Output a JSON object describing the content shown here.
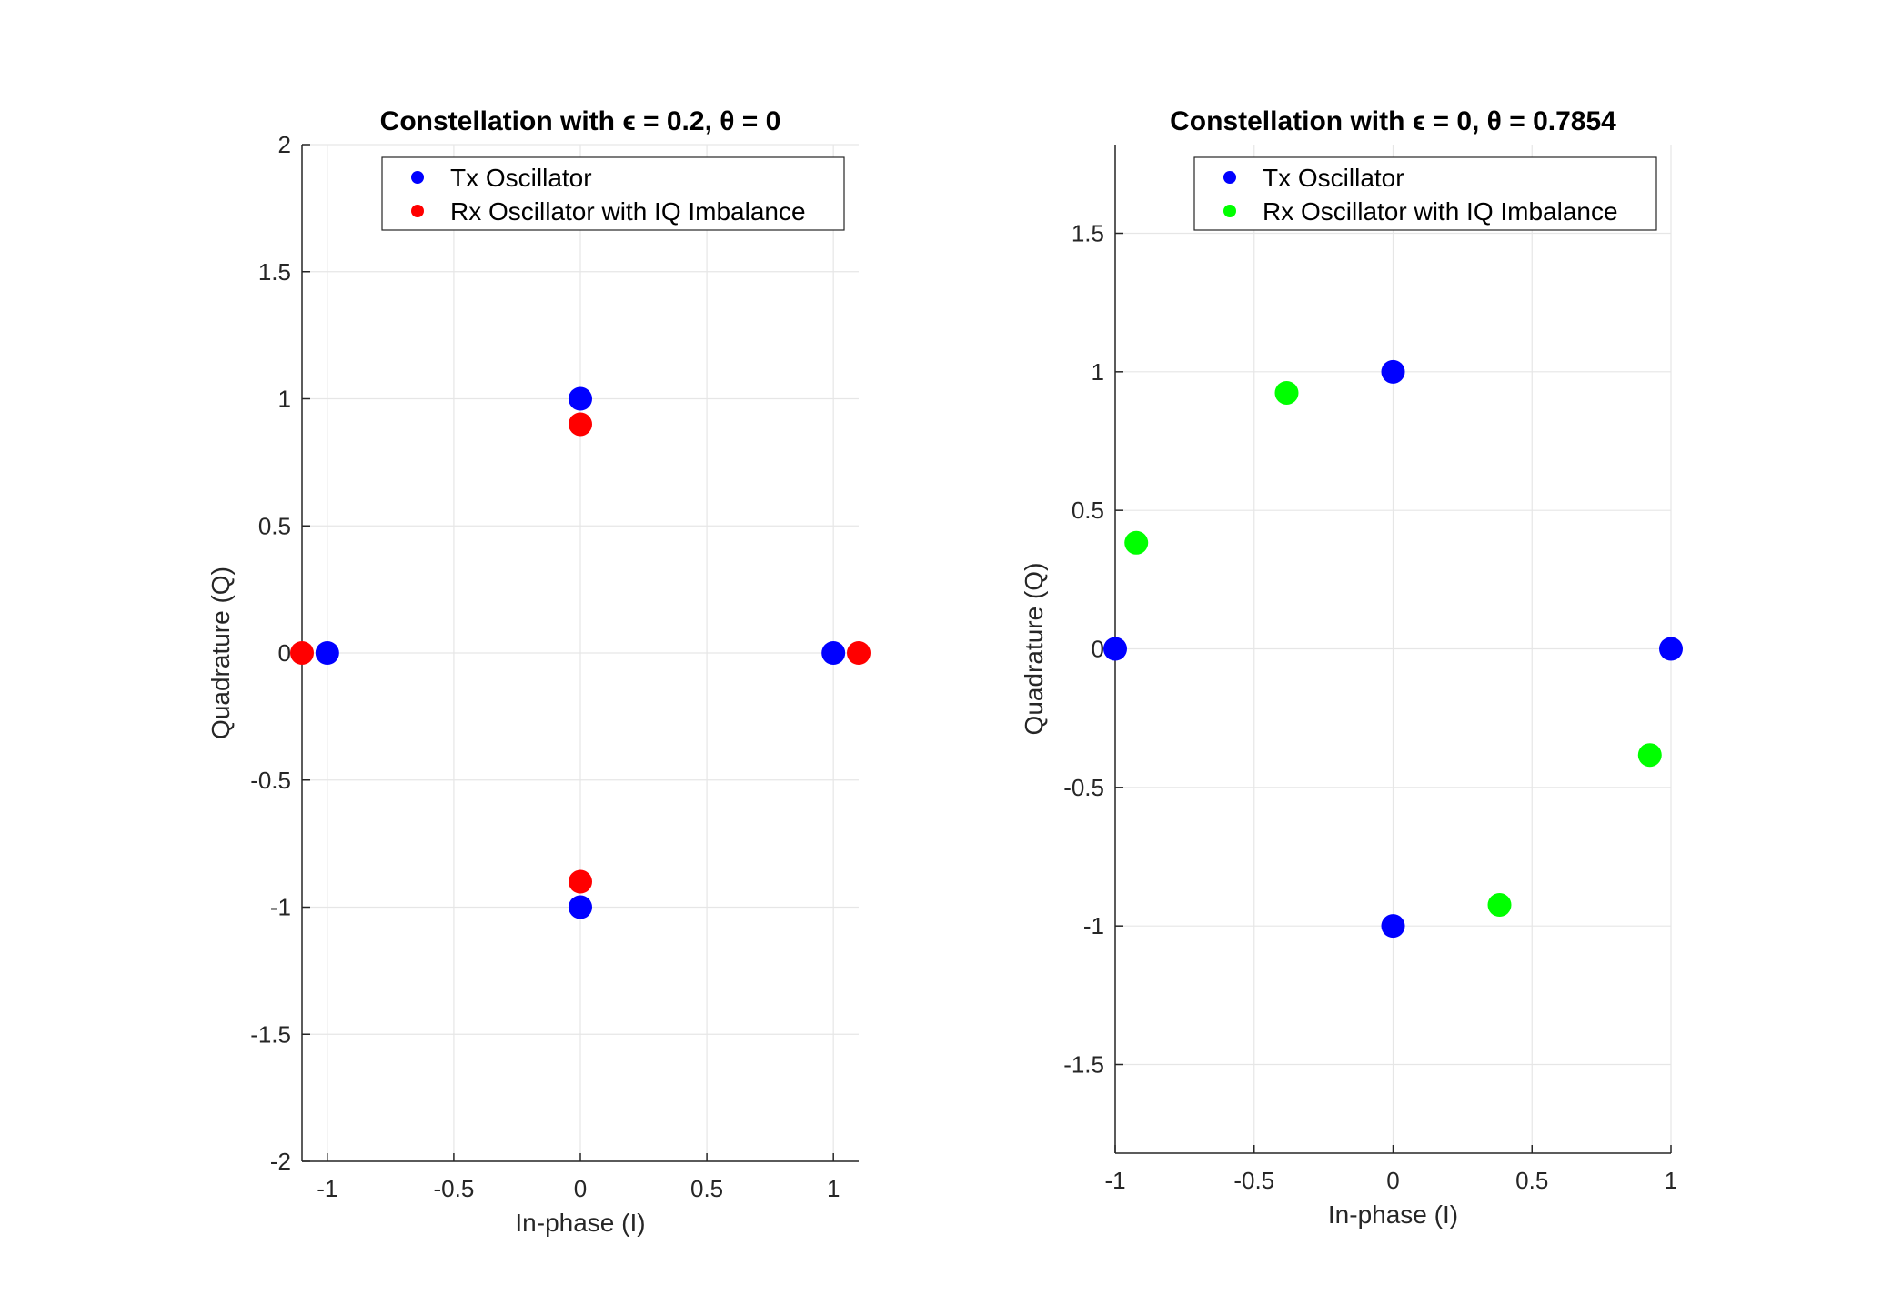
{
  "chart_data": [
    {
      "type": "scatter",
      "title": "Constellation with ϵ = 0.2, θ = 0",
      "xlabel": "In-phase (I)",
      "ylabel": "Quadrature (Q)",
      "xlim": [
        -1.1,
        1.1
      ],
      "ylim": [
        -2,
        2
      ],
      "xticks": [
        -1,
        -0.5,
        0,
        0.5,
        1
      ],
      "xtick_labels": [
        "-1",
        "-0.5",
        "0",
        "0.5",
        "1"
      ],
      "yticks": [
        -2,
        -1.5,
        -1,
        -0.5,
        0,
        0.5,
        1,
        1.5,
        2
      ],
      "ytick_labels": [
        "-2",
        "-1.5",
        "-1",
        "-0.5",
        "0",
        "0.5",
        "1",
        "1.5",
        "2"
      ],
      "grid": true,
      "legend": "top-right",
      "series": [
        {
          "name": "Tx Oscillator",
          "color": "#0000ff",
          "x": [
            1,
            0,
            -1,
            0
          ],
          "y": [
            0,
            1,
            0,
            -1
          ]
        },
        {
          "name": "Rx Oscillator with IQ Imbalance",
          "color": "#ff0000",
          "x": [
            1.1,
            0,
            -1.1,
            0
          ],
          "y": [
            0,
            0.9,
            0,
            -0.9
          ]
        }
      ]
    },
    {
      "type": "scatter",
      "title": "Constellation with ϵ = 0, θ = 0.7854",
      "xlabel": "In-phase (I)",
      "ylabel": "Quadrature (Q)",
      "xlim": [
        -1,
        1
      ],
      "ylim": [
        -1.82,
        1.82
      ],
      "xticks": [
        -1,
        -0.5,
        0,
        0.5,
        1
      ],
      "xtick_labels": [
        "-1",
        "-0.5",
        "0",
        "0.5",
        "1"
      ],
      "yticks": [
        -1.5,
        -1,
        -0.5,
        0,
        0.5,
        1,
        1.5
      ],
      "ytick_labels": [
        "-1.5",
        "-1",
        "-0.5",
        "0",
        "0.5",
        "1",
        "1.5"
      ],
      "grid": true,
      "legend": "top-right",
      "series": [
        {
          "name": "Tx Oscillator",
          "color": "#0000ff",
          "x": [
            1,
            0,
            -1,
            0
          ],
          "y": [
            0,
            1,
            0,
            -1
          ]
        },
        {
          "name": "Rx Oscillator with IQ Imbalance",
          "color": "#00ff00",
          "x": [
            0.924,
            -0.383,
            -0.924,
            0.383
          ],
          "y": [
            -0.383,
            0.924,
            0.383,
            -0.924
          ]
        }
      ]
    }
  ]
}
